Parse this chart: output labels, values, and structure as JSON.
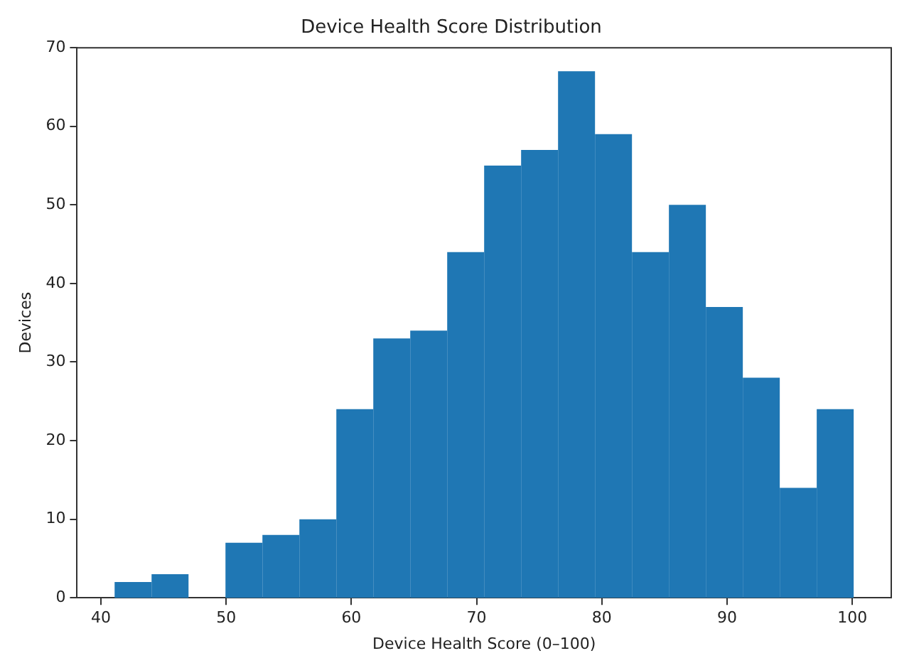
{
  "chart_data": {
    "type": "histogram",
    "title": "Device Health Score Distribution",
    "xlabel": "Device Health Score (0–100)",
    "ylabel": "Devices",
    "bins": [
      41.1,
      44.05,
      47.0,
      49.95,
      52.9,
      55.85,
      58.8,
      61.75,
      64.7,
      67.65,
      70.6,
      73.55,
      76.5,
      79.45,
      82.4,
      85.35,
      88.3,
      91.25,
      94.2,
      97.15,
      100.1
    ],
    "values": [
      2,
      3,
      0,
      7,
      8,
      10,
      24,
      33,
      34,
      44,
      55,
      57,
      67,
      59,
      44,
      50,
      37,
      28,
      14,
      24
    ],
    "color": "#1f77b4",
    "xlim": [
      38.1,
      103.1
    ],
    "ylim": [
      0,
      70
    ],
    "xticks": [
      40,
      50,
      60,
      70,
      80,
      90,
      100
    ],
    "yticks": [
      0,
      10,
      20,
      30,
      40,
      50,
      60,
      70
    ],
    "grid": false,
    "legend": false
  }
}
